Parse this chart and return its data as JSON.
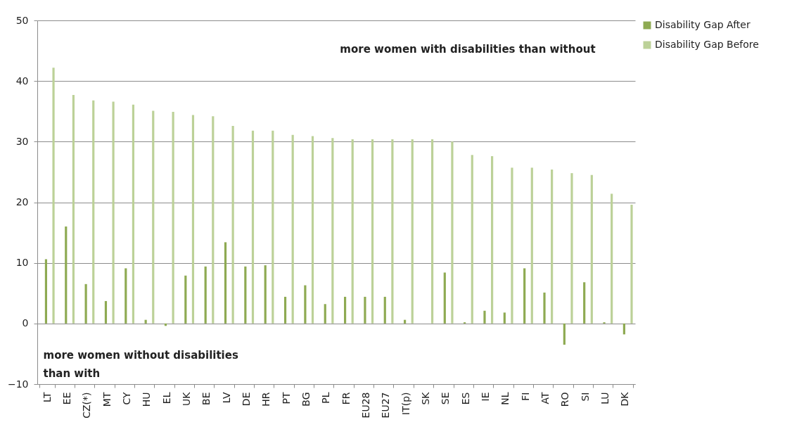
{
  "chart_data": {
    "type": "bar",
    "categories": [
      "LT",
      "EE",
      "CZ(*)",
      "MT",
      "CY",
      "HU",
      "EL",
      "UK",
      "BE",
      "LV",
      "DE",
      "HR",
      "PT",
      "BG",
      "PL",
      "FR",
      "EU28",
      "EU27",
      "IT(p)",
      "SK",
      "SE",
      "ES",
      "IE",
      "NL",
      "FI",
      "AT",
      "RO",
      "SI",
      "LU",
      "DK"
    ],
    "series": [
      {
        "name": "Disability Gap After",
        "color": "#8eaa52",
        "values": [
          10.6,
          16.0,
          6.5,
          3.7,
          9.1,
          0.6,
          -0.4,
          7.9,
          9.4,
          13.4,
          9.4,
          9.6,
          4.4,
          6.3,
          3.2,
          4.4,
          4.4,
          4.4,
          0.6,
          0,
          8.4,
          0.2,
          2.1,
          1.8,
          9.1,
          5.1,
          -3.5,
          6.8,
          0.2,
          -1.8
        ]
      },
      {
        "name": "Disability Gap Before",
        "color": "#bcd198",
        "values": [
          42.2,
          37.7,
          36.8,
          36.6,
          36.1,
          35.1,
          34.9,
          34.4,
          34.2,
          32.6,
          31.8,
          31.8,
          31.1,
          30.9,
          30.6,
          30.4,
          30.4,
          30.4,
          30.4,
          30.4,
          30.0,
          27.8,
          27.6,
          25.7,
          25.7,
          25.4,
          24.8,
          24.5,
          21.4,
          19.6
        ]
      }
    ],
    "ylim": [
      -10,
      50
    ],
    "yticks": [
      -10,
      0,
      10,
      20,
      30,
      40,
      50
    ],
    "grid": "y",
    "legend": "right",
    "annotations": [
      "more women with disabilities than without",
      "more women  without disabilities\nthan with"
    ]
  }
}
